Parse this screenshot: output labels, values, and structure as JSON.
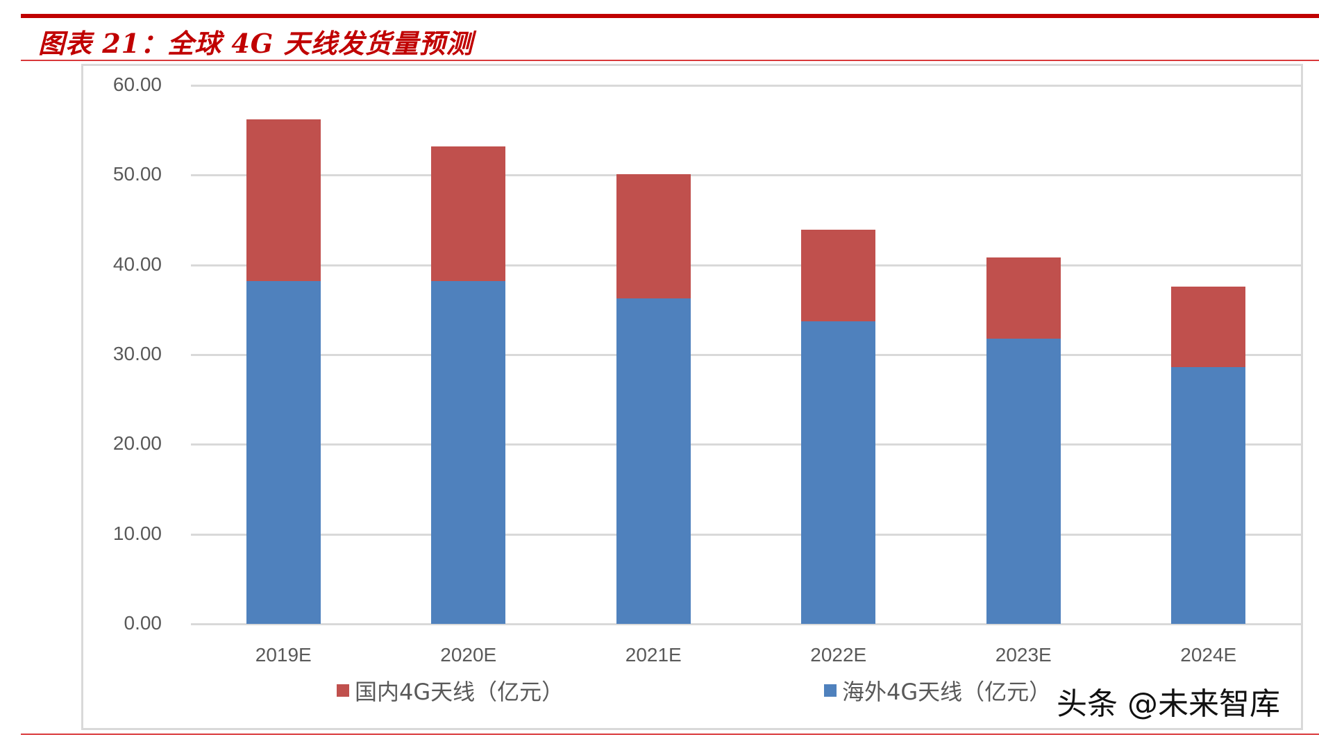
{
  "header": {
    "title": "图表 21：全球 4G 天线发货量预测"
  },
  "legend": {
    "items": [
      {
        "label": "国内4G天线（亿元）",
        "color": "#c0504d"
      },
      {
        "label": "海外4G天线（亿元）",
        "color": "#4f81bd"
      }
    ]
  },
  "watermark": "头条 @未来智库",
  "axis": {
    "y_ticks": [
      "60.00",
      "50.00",
      "40.00",
      "30.00",
      "20.00",
      "10.00",
      "0.00"
    ],
    "x_ticks": [
      "2019E",
      "2020E",
      "2021E",
      "2022E",
      "2023E",
      "2024E"
    ]
  },
  "chart_data": {
    "type": "bar",
    "stacked": true,
    "title": "图表 21：全球 4G 天线发货量预测",
    "xlabel": "",
    "ylabel": "",
    "categories": [
      "2019E",
      "2020E",
      "2021E",
      "2022E",
      "2023E",
      "2024E"
    ],
    "series": [
      {
        "name": "海外4G天线（亿元）",
        "color": "#4f81bd",
        "values": [
          38.2,
          38.2,
          36.3,
          33.7,
          31.8,
          28.6
        ]
      },
      {
        "name": "国内4G天线（亿元）",
        "color": "#c0504d",
        "values": [
          18.0,
          15.0,
          13.8,
          10.2,
          9.0,
          9.0
        ]
      }
    ],
    "totals": [
      56.2,
      53.2,
      50.1,
      43.9,
      40.8,
      37.6
    ],
    "ylim": [
      0,
      60
    ],
    "yticks": [
      0,
      10,
      20,
      30,
      40,
      50,
      60
    ],
    "grid": true,
    "legend_position": "bottom"
  }
}
